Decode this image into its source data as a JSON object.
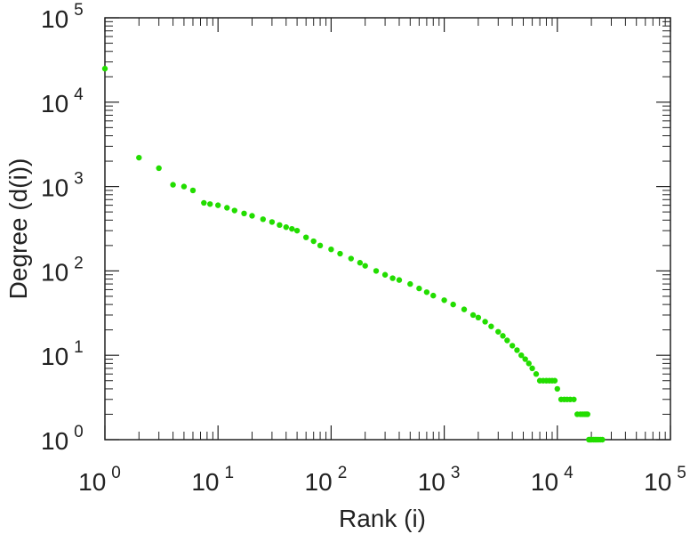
{
  "chart_data": {
    "type": "scatter",
    "title": "",
    "xlabel": "Rank (i)",
    "ylabel": "Degree (d(i))",
    "xscale": "log",
    "yscale": "log",
    "xlim": [
      1,
      100000
    ],
    "ylim": [
      1,
      100000
    ],
    "grid": false,
    "legend": "none",
    "marker_color": "#22dd00",
    "axis_color": "#222222",
    "x_ticks": [
      {
        "base": "10",
        "exp": "0",
        "value": 1
      },
      {
        "base": "10",
        "exp": "1",
        "value": 10
      },
      {
        "base": "10",
        "exp": "2",
        "value": 100
      },
      {
        "base": "10",
        "exp": "3",
        "value": 1000
      },
      {
        "base": "10",
        "exp": "4",
        "value": 10000
      },
      {
        "base": "10",
        "exp": "5",
        "value": 100000
      }
    ],
    "y_ticks": [
      {
        "base": "10",
        "exp": "0",
        "value": 1
      },
      {
        "base": "10",
        "exp": "1",
        "value": 10
      },
      {
        "base": "10",
        "exp": "2",
        "value": 100
      },
      {
        "base": "10",
        "exp": "3",
        "value": 1000
      },
      {
        "base": "10",
        "exp": "4",
        "value": 10000
      },
      {
        "base": "10",
        "exp": "5",
        "value": 100000
      }
    ],
    "series": [
      {
        "x": [
          1,
          2,
          3,
          4,
          5,
          6,
          7.5,
          8.5,
          10,
          12,
          14,
          17,
          20,
          25,
          30,
          35,
          40,
          45,
          50,
          60,
          70,
          80,
          100,
          120,
          150,
          180,
          200,
          250,
          300,
          350,
          400,
          500,
          600,
          700,
          800,
          1000,
          1200,
          1500,
          1800,
          2000,
          2300,
          2600,
          3000,
          3300,
          3600,
          4000,
          4400,
          4800,
          5200,
          5600,
          6000,
          6500,
          7000,
          7500,
          8000,
          8500,
          9000,
          9500,
          10000,
          10800,
          11500,
          12200,
          13000,
          14000,
          15000,
          16000,
          16800,
          17500,
          18000,
          18500,
          19000,
          19500,
          20000,
          20800,
          21500,
          22200,
          23000,
          24000,
          25000
        ],
        "y": [
          25000,
          2200,
          1650,
          1050,
          1000,
          900,
          640,
          620,
          600,
          560,
          520,
          480,
          450,
          410,
          380,
          350,
          330,
          315,
          300,
          250,
          225,
          200,
          180,
          160,
          140,
          125,
          115,
          100,
          90,
          82,
          78,
          70,
          62,
          56,
          51,
          45,
          40,
          35,
          30,
          28,
          25,
          22,
          19,
          17,
          15,
          13,
          11.5,
          10,
          9,
          8,
          7,
          6,
          5,
          5,
          5,
          5,
          5,
          5,
          4,
          3,
          3,
          3,
          3,
          3,
          2,
          2,
          2,
          2,
          2,
          2,
          1,
          1,
          1,
          1,
          1,
          1,
          1,
          1,
          1
        ]
      }
    ]
  }
}
